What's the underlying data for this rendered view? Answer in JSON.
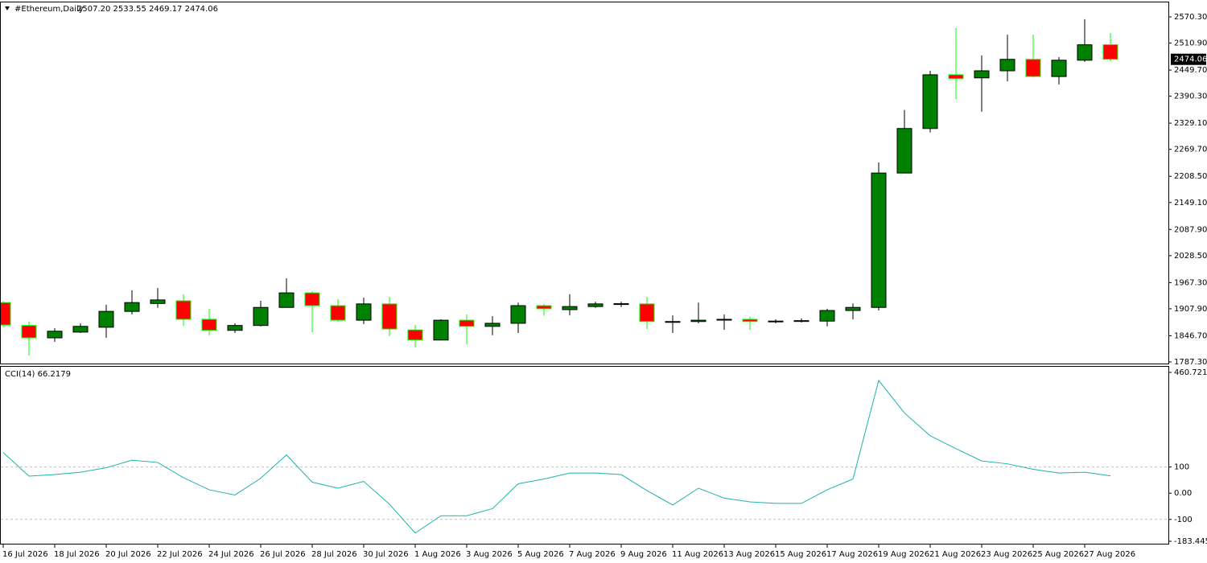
{
  "chart_data": [
    {
      "type": "candlestick",
      "title": "#Ethereum,Daily",
      "subtitle": "2507.20 2533.55 2469.17 2474.06",
      "categories": [
        "16 Jul 2026",
        null,
        "18 Jul 2026",
        null,
        "20 Jul 2026",
        null,
        "22 Jul 2026",
        null,
        "24 Jul 2026",
        null,
        "26 Jul 2026",
        null,
        "28 Jul 2026",
        null,
        "30 Jul 2026",
        null,
        "1 Aug 2026",
        null,
        "3 Aug 2026",
        null,
        "5 Aug 2026",
        null,
        "7 Aug 2026",
        null,
        "9 Aug 2026",
        null,
        "11 Aug 2026",
        null,
        "13 Aug 2026",
        null,
        "15 Aug 2026",
        null,
        "17 Aug 2026",
        null,
        "19 Aug 2026",
        null,
        "21 Aug 2026",
        null,
        "23 Aug 2026",
        null,
        "25 Aug 2026",
        null,
        "27 Aug 2026",
        null
      ],
      "open": [
        1922,
        1870,
        1842,
        1855,
        1866,
        1902,
        1920,
        1926,
        1884,
        1859,
        1870,
        1911,
        1944,
        1915,
        1882,
        1919,
        1860,
        1837,
        1882,
        1868,
        1875,
        1915,
        1906,
        1913,
        1919,
        1919,
        1879,
        1879,
        1884,
        1884,
        1879,
        1880,
        1880,
        1904,
        1911,
        2216,
        2317,
        2439,
        2432,
        2448,
        2474,
        2435,
        2472,
        2507.2
      ],
      "high": [
        1925,
        1879,
        1864,
        1875,
        1917,
        1950,
        1955,
        1941,
        1908,
        1875,
        1926,
        1977,
        1948,
        1930,
        1933,
        1935,
        1871,
        1884,
        1895,
        1891,
        1922,
        1919,
        1941,
        1924,
        1924,
        1935,
        1893,
        1922,
        1895,
        1890,
        1884,
        1886,
        1908,
        1920,
        2240,
        2359,
        2448,
        2545,
        2483,
        2530,
        2530,
        2479,
        2565,
        2533.55
      ],
      "low": [
        1866,
        1802,
        1833,
        1853,
        1842,
        1895,
        1910,
        1869,
        1848,
        1853,
        1868,
        1911,
        1855,
        1878,
        1873,
        1846,
        1820,
        1837,
        1828,
        1848,
        1853,
        1892,
        1893,
        1910,
        1912,
        1862,
        1853,
        1875,
        1860,
        1860,
        1875,
        1877,
        1868,
        1884,
        1904,
        2216,
        2308,
        2384,
        2355,
        2424,
        2433,
        2417,
        2468,
        2469.17
      ],
      "close": [
        1871,
        1842,
        1857,
        1868,
        1902,
        1922,
        1928,
        1884,
        1859,
        1870,
        1911,
        1944,
        1915,
        1882,
        1919,
        1862,
        1837,
        1882,
        1868,
        1875,
        1915,
        1908,
        1913,
        1919,
        1919.5,
        1879,
        1879,
        1882,
        1884,
        1879,
        1880,
        1881,
        1904,
        1911,
        2216,
        2317,
        2439,
        2430,
        2448,
        2474,
        2435,
        2472,
        2507,
        2474.06
      ],
      "up_color": "#008000",
      "down_color": "#ff0000",
      "up_line_color": "#000000",
      "down_line_color": "#00ff00",
      "ylim": [
        1787.3,
        2570.3
      ],
      "yticks": [
        {
          "value": 2570.3,
          "label": "2570.30"
        },
        {
          "value": 2510.9,
          "label": "2510.90"
        },
        {
          "value": 2449.7,
          "label": "2449.70"
        },
        {
          "value": 2390.3,
          "label": "2390.30"
        },
        {
          "value": 2329.1,
          "label": "2329.10"
        },
        {
          "value": 2269.7,
          "label": "2269.70"
        },
        {
          "value": 2208.5,
          "label": "2208.50"
        },
        {
          "value": 2149.1,
          "label": "2149.10"
        },
        {
          "value": 2087.9,
          "label": "2087.90"
        },
        {
          "value": 2028.5,
          "label": "2028.50"
        },
        {
          "value": 1967.3,
          "label": "1967.30"
        },
        {
          "value": 1907.9,
          "label": "1907.90"
        },
        {
          "value": 1846.7,
          "label": "1846.70"
        },
        {
          "value": 1787.3,
          "label": "1787.30"
        }
      ],
      "current_price": {
        "value": 2474.06,
        "label": "2474.06"
      }
    },
    {
      "type": "line",
      "title": "CCI(14) 66.2179",
      "color": "#20b2aa",
      "values": [
        155,
        65,
        71,
        80,
        97,
        126,
        117,
        59,
        13,
        -7,
        57,
        146,
        42,
        19,
        45,
        -42,
        -152,
        -86,
        -86,
        -59,
        36,
        54,
        77,
        77,
        71,
        10,
        -45,
        19,
        -19,
        -33,
        -39,
        -39,
        13,
        54,
        430,
        306,
        219,
        170,
        123,
        112,
        91,
        77,
        80,
        66.2179
      ],
      "ylim": [
        -183.4457,
        460.7219
      ],
      "yticks": [
        460.7219,
        100,
        {
          "value": 0,
          "label": "0.00"
        },
        -100,
        -183.4457
      ],
      "levels": [
        100,
        -100
      ]
    }
  ]
}
